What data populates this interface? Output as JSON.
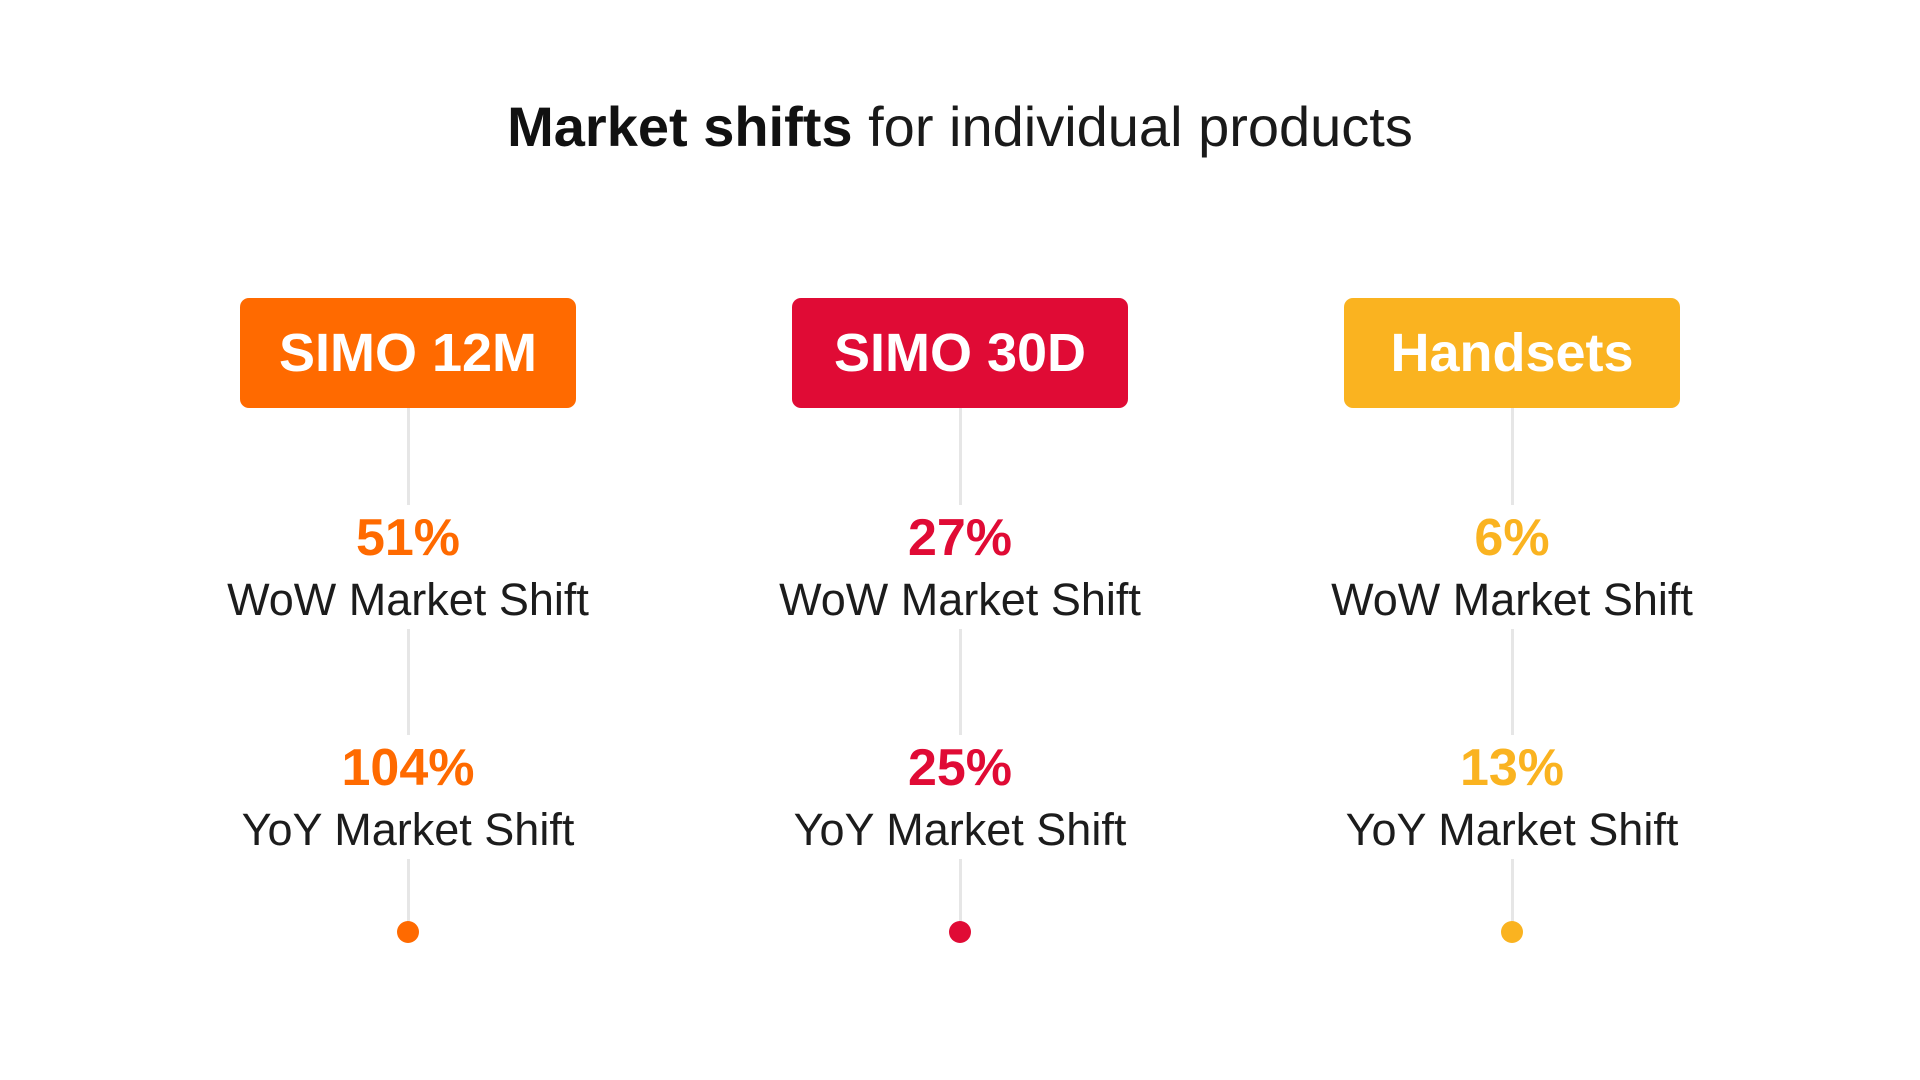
{
  "title": {
    "bold": "Market shifts",
    "rest": " for individual products"
  },
  "products": [
    {
      "name": "SIMO 12M",
      "color": "#FF6A00",
      "wow_value": "51%",
      "wow_label": "WoW Market Shift",
      "yoy_value": "104%",
      "yoy_label": "YoY Market Shift"
    },
    {
      "name": "SIMO 30D",
      "color": "#E00B35",
      "wow_value": "27%",
      "wow_label": "WoW Market Shift",
      "yoy_value": "25%",
      "yoy_label": "YoY Market Shift"
    },
    {
      "name": "Handsets",
      "color": "#FAB320",
      "wow_value": "6%",
      "wow_label": "WoW Market Shift",
      "yoy_value": "13%",
      "yoy_label": "YoY Market Shift"
    }
  ]
}
